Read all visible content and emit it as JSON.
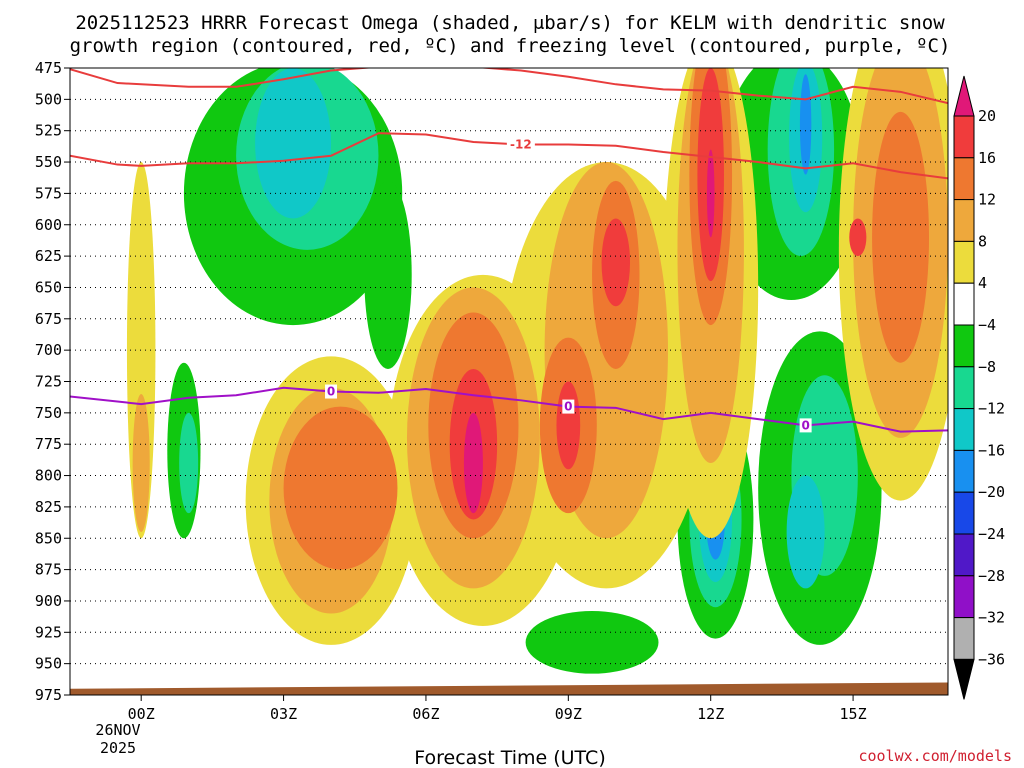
{
  "chart_data": {
    "type": "heatmap",
    "title": "2025112523 HRRR Forecast Omega (shaded, μbar/s) for KELM with dendritic snow growth region (contoured, red, ºC) and freezing level (contoured, purple, ºC)",
    "title_lines": [
      "2025112523 HRRR Forecast Omega (shaded, μbar/s) for KELM with dendritic snow",
      "growth region (contoured, red, ºC) and freezing level (contoured, purple, ºC)"
    ],
    "xlabel": "Forecast Time (UTC)",
    "ylabel": "",
    "credit": "coolwx.com/models",
    "date_label": [
      "26NOV",
      "2025"
    ],
    "x_hours": [
      -1.5,
      17
    ],
    "x_ticks": [
      {
        "hour": 0,
        "label": "00Z"
      },
      {
        "hour": 3,
        "label": "03Z"
      },
      {
        "hour": 6,
        "label": "06Z"
      },
      {
        "hour": 9,
        "label": "09Z"
      },
      {
        "hour": 12,
        "label": "12Z"
      },
      {
        "hour": 15,
        "label": "15Z"
      }
    ],
    "y_range_hpa": [
      475,
      975
    ],
    "y_ticks": [
      475,
      500,
      525,
      550,
      575,
      600,
      625,
      650,
      675,
      700,
      725,
      750,
      775,
      800,
      825,
      850,
      875,
      900,
      925,
      950,
      975
    ],
    "colorbar": {
      "labels": [
        "20",
        "16",
        "12",
        "8",
        "4",
        "−4",
        "−8",
        "−12",
        "−16",
        "−20",
        "−24",
        "−28",
        "−32",
        "−36"
      ],
      "colors": [
        "#e01878",
        "#f03c3c",
        "#ee7830",
        "#eea83c",
        "#ecdc3c",
        "#ffffff",
        "#10c810",
        "#18d890",
        "#10c8c8",
        "#1890f0",
        "#1848e8",
        "#5018c8",
        "#9010c8",
        "#b0b0b0",
        "#000000"
      ]
    },
    "shaded_regions": [
      {
        "level": "-4",
        "color": "#10c810",
        "cx": 3.2,
        "cy": 575,
        "rx": 2.3,
        "ry": 105
      },
      {
        "level": "-4",
        "color": "#10c810",
        "cx": 0.9,
        "cy": 780,
        "rx": 0.35,
        "ry": 70
      },
      {
        "level": "-4",
        "color": "#10c810",
        "cx": 5.2,
        "cy": 640,
        "rx": 0.5,
        "ry": 75
      },
      {
        "level": "-4",
        "color": "#10c810",
        "cx": 13.7,
        "cy": 560,
        "rx": 1.5,
        "ry": 100
      },
      {
        "level": "-4",
        "color": "#10c810",
        "cx": 12.1,
        "cy": 835,
        "rx": 0.8,
        "ry": 95
      },
      {
        "level": "-4",
        "color": "#10c810",
        "cx": 14.3,
        "cy": 810,
        "rx": 1.3,
        "ry": 125
      },
      {
        "level": "-4",
        "color": "#10c810",
        "cx": 9.5,
        "cy": 933,
        "rx": 1.4,
        "ry": 25
      },
      {
        "level": "-8",
        "color": "#18d890",
        "cx": 3.5,
        "cy": 545,
        "rx": 1.5,
        "ry": 75
      },
      {
        "level": "-8",
        "color": "#18d890",
        "cx": 12.1,
        "cy": 835,
        "rx": 0.55,
        "ry": 70
      },
      {
        "level": "-8",
        "color": "#18d890",
        "cx": 14.4,
        "cy": 800,
        "rx": 0.7,
        "ry": 80
      },
      {
        "level": "-8",
        "color": "#18d890",
        "cx": 13.9,
        "cy": 540,
        "rx": 0.7,
        "ry": 85
      },
      {
        "level": "-8",
        "color": "#18d890",
        "cx": 1.0,
        "cy": 790,
        "rx": 0.2,
        "ry": 40
      },
      {
        "level": "-12",
        "color": "#10c8c8",
        "cx": 3.2,
        "cy": 535,
        "rx": 0.8,
        "ry": 60
      },
      {
        "level": "-12",
        "color": "#10c8c8",
        "cx": 12.1,
        "cy": 835,
        "rx": 0.35,
        "ry": 50
      },
      {
        "level": "-12",
        "color": "#10c8c8",
        "cx": 14.0,
        "cy": 530,
        "rx": 0.35,
        "ry": 60
      },
      {
        "level": "-12",
        "color": "#10c8c8",
        "cx": 14.0,
        "cy": 845,
        "rx": 0.4,
        "ry": 45
      },
      {
        "level": "-16",
        "color": "#1890f0",
        "cx": 12.1,
        "cy": 835,
        "rx": 0.2,
        "ry": 32
      },
      {
        "level": "-16",
        "color": "#1890f0",
        "cx": 14.0,
        "cy": 520,
        "rx": 0.12,
        "ry": 40
      },
      {
        "level": "-24",
        "color": "#5018c8",
        "cx": 12.0,
        "cy": 835,
        "rx": 0.07,
        "ry": 12
      },
      {
        "level": "4",
        "color": "#ecdc3c",
        "cx": 0.0,
        "cy": 700,
        "rx": 0.3,
        "ry": 150
      },
      {
        "level": "4",
        "color": "#ecdc3c",
        "cx": 4.0,
        "cy": 820,
        "rx": 1.8,
        "ry": 115
      },
      {
        "level": "4",
        "color": "#ecdc3c",
        "cx": 7.2,
        "cy": 780,
        "rx": 2.0,
        "ry": 140
      },
      {
        "level": "4",
        "color": "#ecdc3c",
        "cx": 9.8,
        "cy": 720,
        "rx": 2.2,
        "ry": 170
      },
      {
        "level": "4",
        "color": "#ecdc3c",
        "cx": 12.0,
        "cy": 650,
        "rx": 1.0,
        "ry": 200
      },
      {
        "level": "4",
        "color": "#ecdc3c",
        "cx": 16.0,
        "cy": 620,
        "rx": 1.3,
        "ry": 200
      },
      {
        "level": "8",
        "color": "#eea83c",
        "cx": 0.0,
        "cy": 790,
        "rx": 0.18,
        "ry": 55
      },
      {
        "level": "8",
        "color": "#eea83c",
        "cx": 4.0,
        "cy": 820,
        "rx": 1.3,
        "ry": 90
      },
      {
        "level": "8",
        "color": "#eea83c",
        "cx": 7.0,
        "cy": 770,
        "rx": 1.4,
        "ry": 120
      },
      {
        "level": "8",
        "color": "#eea83c",
        "cx": 9.8,
        "cy": 700,
        "rx": 1.3,
        "ry": 150
      },
      {
        "level": "8",
        "color": "#eea83c",
        "cx": 12.0,
        "cy": 620,
        "rx": 0.7,
        "ry": 170
      },
      {
        "level": "8",
        "color": "#eea83c",
        "cx": 16.0,
        "cy": 610,
        "rx": 1.0,
        "ry": 160
      },
      {
        "level": "12",
        "color": "#ee7830",
        "cx": 4.2,
        "cy": 810,
        "rx": 1.2,
        "ry": 65
      },
      {
        "level": "12",
        "color": "#ee7830",
        "cx": 7.0,
        "cy": 760,
        "rx": 0.95,
        "ry": 90
      },
      {
        "level": "12",
        "color": "#ee7830",
        "cx": 9.0,
        "cy": 760,
        "rx": 0.6,
        "ry": 70
      },
      {
        "level": "12",
        "color": "#ee7830",
        "cx": 10.0,
        "cy": 640,
        "rx": 0.5,
        "ry": 75
      },
      {
        "level": "12",
        "color": "#ee7830",
        "cx": 12.0,
        "cy": 560,
        "rx": 0.45,
        "ry": 120
      },
      {
        "level": "12",
        "color": "#ee7830",
        "cx": 16.0,
        "cy": 610,
        "rx": 0.6,
        "ry": 100
      },
      {
        "level": "16",
        "color": "#f03c3c",
        "cx": 7.0,
        "cy": 775,
        "rx": 0.5,
        "ry": 60
      },
      {
        "level": "16",
        "color": "#f03c3c",
        "cx": 9.0,
        "cy": 760,
        "rx": 0.25,
        "ry": 35
      },
      {
        "level": "16",
        "color": "#f03c3c",
        "cx": 10.0,
        "cy": 630,
        "rx": 0.3,
        "ry": 35
      },
      {
        "level": "16",
        "color": "#f03c3c",
        "cx": 12.0,
        "cy": 560,
        "rx": 0.28,
        "ry": 85
      },
      {
        "level": "16",
        "color": "#f03c3c",
        "cx": 15.1,
        "cy": 610,
        "rx": 0.18,
        "ry": 15
      },
      {
        "level": "20",
        "color": "#e01878",
        "cx": 7.0,
        "cy": 790,
        "rx": 0.2,
        "ry": 40
      },
      {
        "level": "20",
        "color": "#e01878",
        "cx": 12.0,
        "cy": 575,
        "rx": 0.08,
        "ry": 35
      }
    ],
    "series": [
      {
        "name": "dendritic snow growth region -12 ºC (upper)",
        "color": "#e83c3c",
        "x": [
          -1.5,
          -0.5,
          1,
          2,
          3,
          4,
          5,
          6,
          7,
          8,
          9,
          10,
          11,
          12,
          13,
          14,
          15,
          16,
          17
        ],
        "y": [
          476,
          487,
          490,
          490,
          484,
          477,
          474,
          474,
          474,
          477,
          482,
          488,
          492,
          493,
          497,
          500,
          490,
          494,
          503
        ]
      },
      {
        "name": "dendritic snow growth region -12 ºC (lower)",
        "color": "#e83c3c",
        "x": [
          -1.5,
          -0.5,
          0,
          1,
          2,
          3,
          4,
          5,
          6,
          7,
          8,
          9,
          10,
          11,
          12,
          13,
          14,
          15,
          16,
          17
        ],
        "y": [
          545,
          552,
          553,
          551,
          551,
          549,
          545,
          527,
          528,
          534,
          536,
          536,
          537,
          542,
          546,
          550,
          555,
          551,
          558,
          563
        ]
      },
      {
        "name": "freezing level 0 ºC",
        "color": "#a010c8",
        "x": [
          -1.5,
          0,
          1,
          2,
          3,
          4,
          5,
          6,
          7,
          8,
          9,
          10,
          11,
          12,
          13,
          14,
          15,
          16,
          17
        ],
        "y": [
          737,
          743,
          738,
          736,
          730,
          733,
          734,
          731,
          736,
          740,
          745,
          746,
          755,
          750,
          755,
          760,
          757,
          765,
          764
        ]
      }
    ],
    "contour_labels": [
      {
        "text": "-12",
        "color": "#e83c3c",
        "x": 8.0,
        "y": 536
      },
      {
        "text": "0",
        "color": "#a010c8",
        "x": 4.0,
        "y": 733
      },
      {
        "text": "0",
        "color": "#a010c8",
        "x": 9.0,
        "y": 745
      },
      {
        "text": "0",
        "color": "#a010c8",
        "x": 14.0,
        "y": 760
      }
    ],
    "ground": {
      "color": "#a05a2c",
      "x": [
        -1.5,
        17
      ],
      "top_hpa": [
        970,
        965
      ]
    }
  }
}
